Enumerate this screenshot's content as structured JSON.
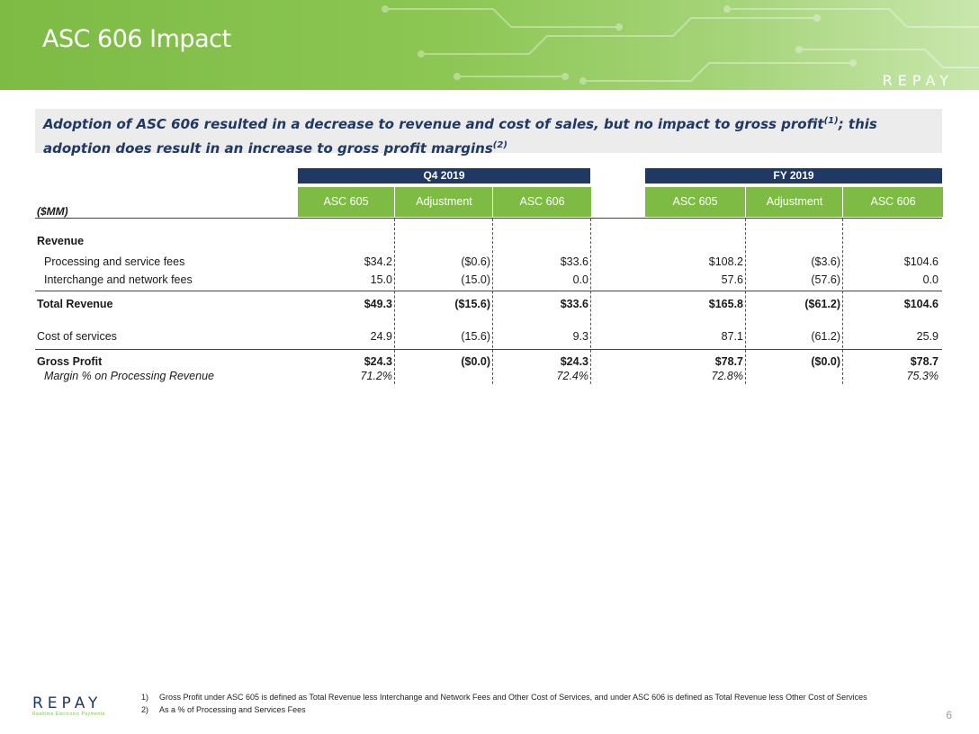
{
  "slide": {
    "title": "ASC 606 Impact",
    "logo_text": "REPAY",
    "page_number": "6"
  },
  "callout": {
    "text_1": "Adoption of ASC 606 resulted in a decrease to revenue and cost of sales, but no impact to gross profit",
    "sup_1": "(1)",
    "text_2": "; this adoption does result in an increase to gross profit margins",
    "sup_2": "(2)"
  },
  "table": {
    "unit_label": "($MM)",
    "groups": [
      "Q4 2019",
      "FY 2019"
    ],
    "columns": [
      "ASC 605",
      "Adjustment",
      "ASC 606",
      "ASC 605",
      "Adjustment",
      "ASC 606"
    ],
    "section_revenue": "Revenue",
    "rows": [
      {
        "label": "Processing and service fees",
        "values": [
          "$34.2",
          "($0.6)",
          "$33.6",
          "$108.2",
          "($3.6)",
          "$104.6"
        ]
      },
      {
        "label": "Interchange and network fees",
        "values": [
          "15.0",
          "(15.0)",
          "0.0",
          "57.6",
          "(57.6)",
          "0.0"
        ]
      },
      {
        "label": "Total Revenue",
        "values": [
          "$49.3",
          "($15.6)",
          "$33.6",
          "$165.8",
          "($61.2)",
          "$104.6"
        ]
      },
      {
        "label": "Cost of services",
        "values": [
          "24.9",
          "(15.6)",
          "9.3",
          "87.1",
          "(61.2)",
          "25.9"
        ]
      },
      {
        "label": "Gross Profit",
        "values": [
          "$24.3",
          "($0.0)",
          "$24.3",
          "$78.7",
          "($0.0)",
          "$78.7"
        ]
      },
      {
        "label": "Margin % on Processing Revenue",
        "values": [
          "71.2%",
          "",
          "72.4%",
          "72.8%",
          "",
          "75.3%"
        ]
      }
    ]
  },
  "footnotes": [
    {
      "num": "1)",
      "text": "Gross Profit under ASC 605 is defined as Total Revenue less Interchange and Network Fees and Other Cost of Services, and under ASC 606 is defined as Total Revenue less Other Cost of Services"
    },
    {
      "num": "2)",
      "text": "As a % of Processing and Services Fees"
    }
  ],
  "footer_logo": {
    "name": "REPAY",
    "tagline": "Realtime Electronic Payments"
  }
}
